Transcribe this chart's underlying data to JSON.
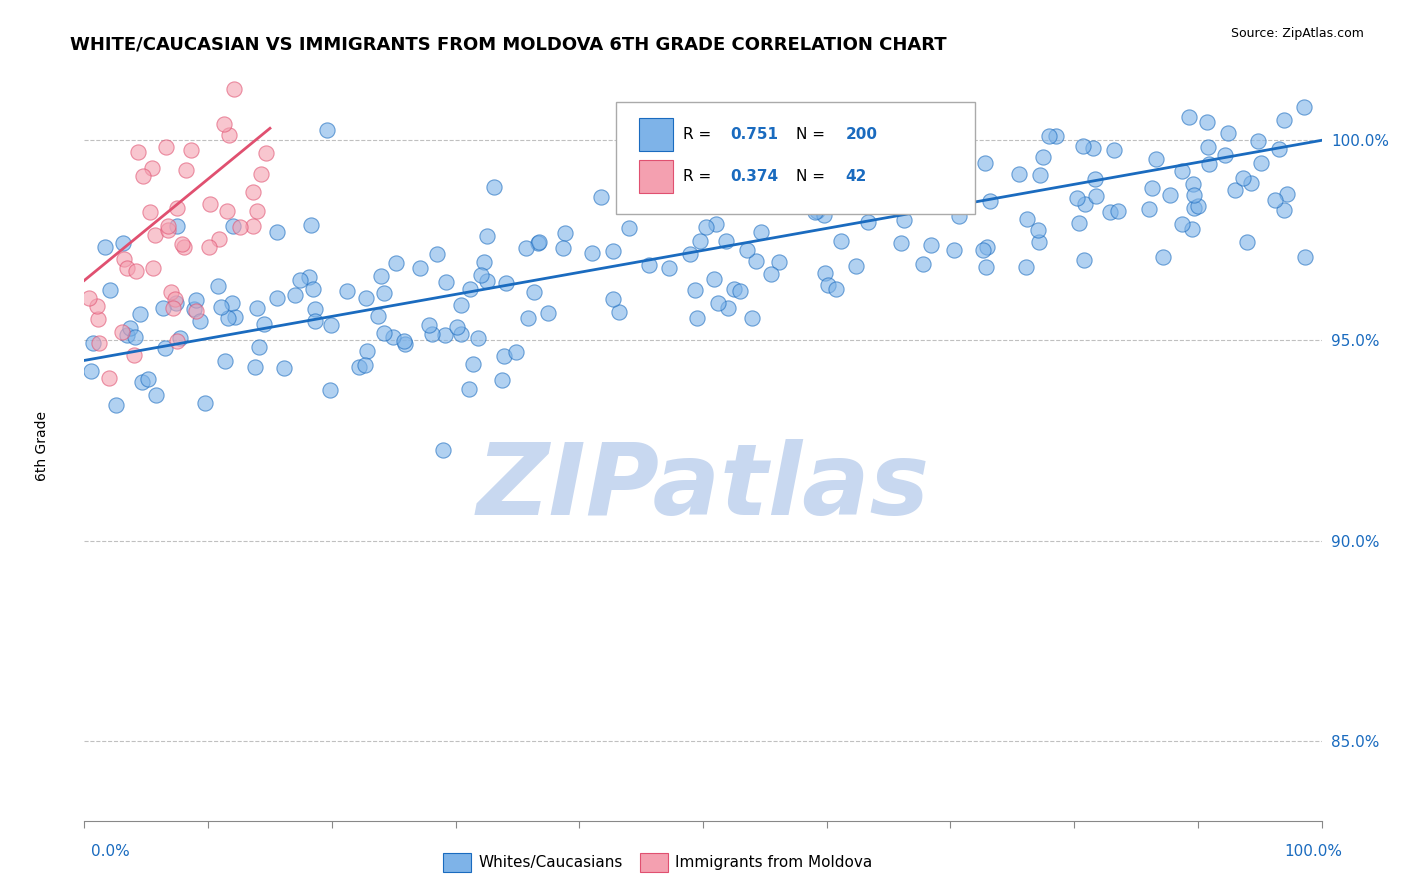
{
  "title": "WHITE/CAUCASIAN VS IMMIGRANTS FROM MOLDOVA 6TH GRADE CORRELATION CHART",
  "source": "Source: ZipAtlas.com",
  "ylabel": "6th Grade",
  "yaxis_ticks": [
    85.0,
    90.0,
    95.0,
    100.0
  ],
  "yaxis_labels": [
    "85.0%",
    "90.0%",
    "95.0%",
    "100.0%"
  ],
  "xlim": [
    0.0,
    100.0
  ],
  "ylim": [
    83.0,
    101.5
  ],
  "blue_R": 0.751,
  "blue_N": 200,
  "pink_R": 0.374,
  "pink_N": 42,
  "blue_color": "#7eb3e8",
  "pink_color": "#f4a0b0",
  "blue_line_color": "#1a6bbf",
  "pink_line_color": "#e05070",
  "legend_label_blue": "Whites/Caucasians",
  "legend_label_pink": "Immigrants from Moldova",
  "watermark": "ZIPatlas",
  "watermark_color": "#c8d8f0",
  "grid_color": "#c0c0c0",
  "blue_seed": 42,
  "pink_seed": 7,
  "blue_trend_start_x": 0.0,
  "blue_trend_start_y": 94.5,
  "blue_trend_end_x": 100.0,
  "blue_trend_end_y": 100.0,
  "pink_trend_start_x": 0.0,
  "pink_trend_start_y": 96.5,
  "pink_trend_end_x": 15.0,
  "pink_trend_end_y": 100.3
}
